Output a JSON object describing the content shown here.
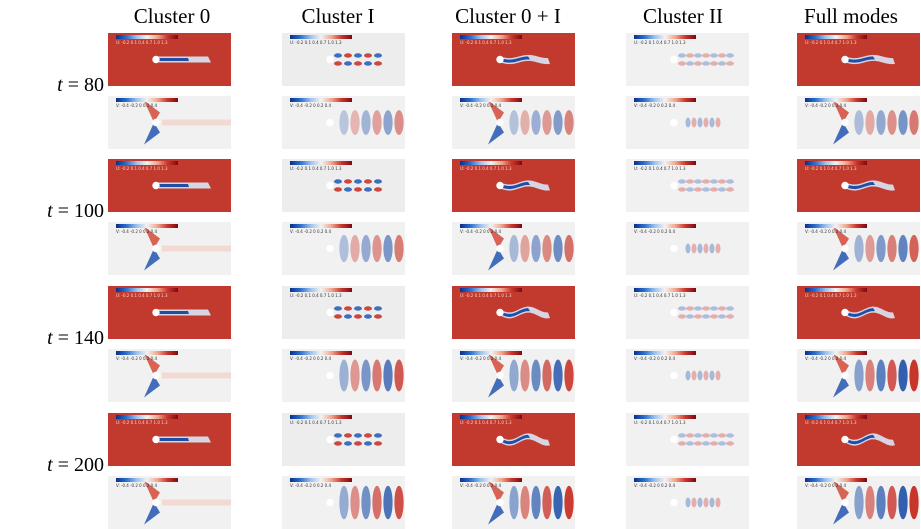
{
  "columns": [
    "Cluster 0",
    "Cluster I",
    "Cluster 0 + I",
    "Cluster II",
    "Full modes"
  ],
  "rows": [
    {
      "prefix": "t",
      "suffix": " = 80"
    },
    {
      "prefix": "t",
      "suffix": " = 100"
    },
    {
      "prefix": "t",
      "suffix": " = 140"
    },
    {
      "prefix": "t",
      "suffix": " = 200"
    }
  ],
  "colorbar": {
    "u_ticks": "U: -0.2  0.1  0.4  0.7  1.0  1.3",
    "v_ticks": "V: -0.4  -0.2  0  0.2  0.4"
  },
  "colors": {
    "red": "#c0392b",
    "blue": "#1d4fa8",
    "white": "#f4f4f4"
  }
}
